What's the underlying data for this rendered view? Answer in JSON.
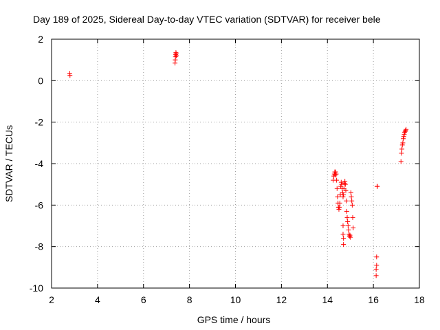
{
  "chart_data": {
    "type": "scatter",
    "title": "Day 189 of 2025, Sidereal Day-to-day VTEC variation (SDTVAR) for receiver bele",
    "xlabel": "GPS time / hours",
    "ylabel": "SDTVAR / TECUs",
    "xlim": [
      2,
      18
    ],
    "ylim": [
      -10,
      2
    ],
    "xticks": [
      2,
      4,
      6,
      8,
      10,
      12,
      14,
      16,
      18
    ],
    "yticks": [
      -10,
      -8,
      -6,
      -4,
      -2,
      0,
      2
    ],
    "xtick_labels": [
      "2",
      "4",
      "6",
      "8",
      "10",
      "12",
      "14",
      "16",
      "18"
    ],
    "ytick_labels": [
      "-10",
      "-8",
      "-6",
      "-4",
      "-2",
      "0",
      "2"
    ],
    "grid": true,
    "marker": "plus",
    "series": [
      {
        "name": "SDTVAR",
        "color": "#ff0000",
        "x": [
          2.79,
          2.8,
          7.37,
          7.38,
          7.39,
          7.4,
          7.41,
          7.42,
          7.43,
          14.25,
          14.28,
          14.3,
          14.32,
          14.34,
          14.36,
          14.38,
          14.4,
          14.42,
          14.44,
          14.46,
          14.48,
          14.5,
          14.52,
          14.54,
          14.56,
          14.58,
          14.6,
          14.62,
          14.64,
          14.66,
          14.68,
          14.7,
          14.72,
          14.74,
          14.76,
          14.78,
          14.8,
          14.82,
          14.84,
          14.86,
          14.88,
          14.9,
          14.92,
          14.94,
          14.96,
          14.98,
          15.0,
          15.02,
          15.04,
          15.06,
          15.08,
          15.1,
          15.12,
          14.68,
          14.68,
          14.7,
          14.7,
          16.16,
          16.17,
          16.14,
          16.14,
          16.12,
          16.12,
          17.2,
          17.22,
          17.24,
          17.26,
          17.28,
          17.3,
          17.32,
          17.34,
          17.36,
          17.38,
          17.4,
          17.42
        ],
        "y": [
          0.35,
          0.25,
          0.85,
          1.0,
          1.15,
          1.25,
          1.35,
          1.3,
          1.2,
          -4.8,
          -4.6,
          -4.5,
          -4.4,
          -4.55,
          -4.4,
          -4.5,
          -4.8,
          -5.2,
          -5.6,
          -5.9,
          -6.1,
          -6.2,
          -6.1,
          -5.9,
          -5.5,
          -5.1,
          -4.9,
          -5.0,
          -5.2,
          -5.4,
          -5.6,
          -5.5,
          -5.2,
          -4.95,
          -4.85,
          -5.0,
          -5.3,
          -5.8,
          -6.3,
          -6.6,
          -6.8,
          -7.0,
          -7.2,
          -7.4,
          -7.5,
          -7.45,
          -7.55,
          -5.4,
          -5.6,
          -5.8,
          -6.0,
          -6.6,
          -7.1,
          -7.0,
          -7.4,
          -7.6,
          -7.9,
          -5.1,
          -5.1,
          -8.5,
          -8.9,
          -9.1,
          -9.4,
          -3.9,
          -3.5,
          -3.3,
          -3.1,
          -3.0,
          -2.8,
          -2.7,
          -2.6,
          -2.5,
          -2.45,
          -2.4,
          -2.35
        ]
      }
    ]
  }
}
